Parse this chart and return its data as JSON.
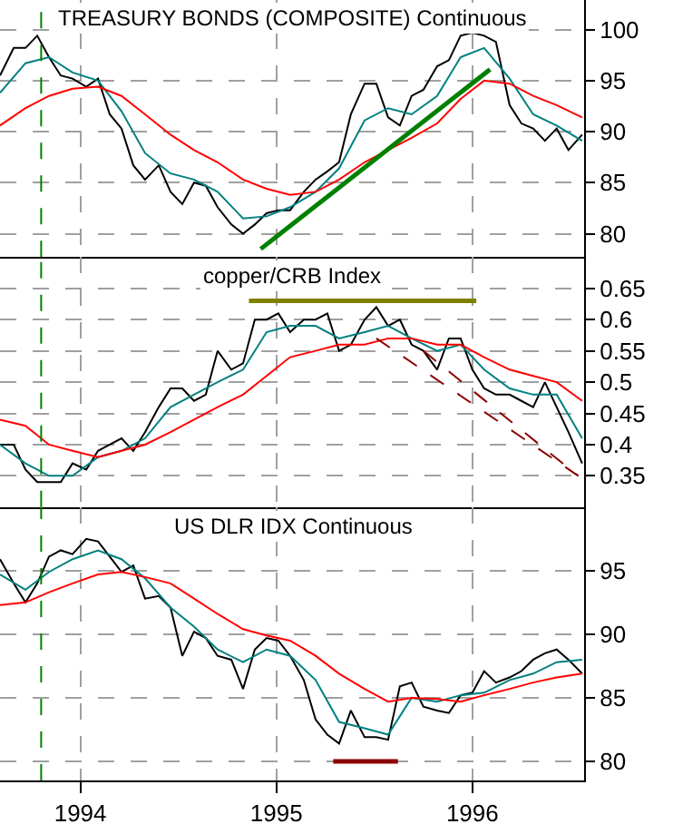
{
  "chart_data": [
    {
      "type": "line",
      "title": "TREASURY BONDS (COMPOSITE) Continuous",
      "x": [
        1993.59,
        1993.66,
        1993.72,
        1993.78,
        1993.84,
        1993.9,
        1993.96,
        1994.03,
        1994.09,
        1994.15,
        1994.21,
        1994.27,
        1994.33,
        1994.4,
        1994.46,
        1994.52,
        1994.58,
        1994.64,
        1994.7,
        1994.77,
        1994.83,
        1994.89,
        1994.95,
        1995.01,
        1995.07,
        1995.14,
        1995.2,
        1995.26,
        1995.32,
        1995.38,
        1995.45,
        1995.51,
        1995.57,
        1995.63,
        1995.69,
        1995.75,
        1995.82,
        1995.88,
        1995.94,
        1996.0,
        1996.06,
        1996.12,
        1996.19,
        1996.25,
        1996.31,
        1996.37,
        1996.43,
        1996.49,
        1996.56
      ],
      "series": [
        {
          "color": "#000000",
          "values": [
            95.5,
            98.2,
            98.2,
            99.4,
            97.3,
            95.5,
            95.2,
            94.4,
            95.2,
            91.7,
            90.3,
            86.7,
            85.3,
            86.7,
            84.1,
            82.9,
            85.0,
            84.7,
            82.6,
            80.9,
            80.0,
            80.9,
            82.0,
            82.3,
            82.3,
            84.1,
            85.3,
            86.1,
            87.0,
            91.7,
            94.7,
            94.7,
            91.4,
            90.6,
            93.5,
            94.1,
            96.4,
            97.0,
            99.4,
            99.7,
            99.4,
            98.8,
            92.6,
            90.8,
            90.3,
            89.1,
            90.3,
            88.2,
            89.7
          ]
        },
        {
          "color": "#008080",
          "x": [
            1993.59,
            1993.72,
            1993.84,
            1993.96,
            1994.09,
            1994.21,
            1994.33,
            1994.46,
            1994.58,
            1994.7,
            1994.83,
            1994.95,
            1995.07,
            1995.2,
            1995.32,
            1995.45,
            1995.57,
            1995.69,
            1995.82,
            1995.94,
            1996.06,
            1996.19,
            1996.31,
            1996.43,
            1996.56
          ],
          "values": [
            93.8,
            96.7,
            97.3,
            95.8,
            95.0,
            92.0,
            87.9,
            85.9,
            85.3,
            84.1,
            81.5,
            81.7,
            82.6,
            84.1,
            86.4,
            91.1,
            92.3,
            91.7,
            93.5,
            97.3,
            98.2,
            95.2,
            91.7,
            90.6,
            89.1
          ]
        },
        {
          "color": "#ff0000",
          "x": [
            1993.59,
            1993.72,
            1993.84,
            1993.96,
            1994.09,
            1994.21,
            1994.33,
            1994.46,
            1994.58,
            1994.7,
            1994.83,
            1994.95,
            1995.07,
            1995.2,
            1995.32,
            1995.45,
            1995.57,
            1995.69,
            1995.82,
            1995.94,
            1996.06,
            1996.19,
            1996.31,
            1996.43,
            1996.56
          ],
          "values": [
            90.6,
            92.3,
            93.5,
            94.2,
            94.4,
            93.5,
            91.7,
            89.7,
            88.2,
            87.0,
            85.3,
            84.4,
            83.8,
            84.1,
            85.3,
            87.0,
            88.2,
            89.4,
            90.8,
            93.2,
            95.0,
            94.7,
            93.5,
            92.6,
            91.4
          ]
        },
        {
          "color": "#008000",
          "x": [
            1994.92,
            1996.09
          ],
          "values": [
            78.5,
            96.1
          ]
        }
      ],
      "xlim": [
        1993.59,
        1996.57
      ],
      "ylim": [
        77.7,
        102.9
      ],
      "yticks": [
        80,
        85,
        90,
        95,
        100
      ],
      "grid": true,
      "tick_labels": "y",
      "ref_lines": [
        {
          "axis": "x",
          "value": 1993.8,
          "color": "#008000",
          "line_style": "dashed"
        }
      ]
    },
    {
      "type": "line",
      "title": "copper/CRB Index",
      "x": [
        1993.59,
        1993.66,
        1993.72,
        1993.78,
        1993.84,
        1993.9,
        1993.96,
        1994.03,
        1994.09,
        1994.15,
        1994.21,
        1994.27,
        1994.33,
        1994.4,
        1994.46,
        1994.52,
        1994.58,
        1994.64,
        1994.7,
        1994.77,
        1994.83,
        1994.89,
        1994.95,
        1995.01,
        1995.07,
        1995.14,
        1995.2,
        1995.26,
        1995.32,
        1995.38,
        1995.45,
        1995.51,
        1995.57,
        1995.63,
        1995.69,
        1995.75,
        1995.82,
        1995.88,
        1995.94,
        1996.0,
        1996.06,
        1996.12,
        1996.19,
        1996.25,
        1996.31,
        1996.37,
        1996.43,
        1996.49,
        1996.56
      ],
      "series": [
        {
          "color": "#000000",
          "values": [
            0.4,
            0.4,
            0.36,
            0.34,
            0.34,
            0.34,
            0.37,
            0.36,
            0.39,
            0.4,
            0.41,
            0.39,
            0.42,
            0.46,
            0.49,
            0.49,
            0.47,
            0.48,
            0.55,
            0.52,
            0.53,
            0.6,
            0.6,
            0.61,
            0.58,
            0.6,
            0.6,
            0.61,
            0.55,
            0.56,
            0.6,
            0.62,
            0.59,
            0.6,
            0.56,
            0.55,
            0.52,
            0.57,
            0.57,
            0.52,
            0.49,
            0.48,
            0.48,
            0.47,
            0.46,
            0.5,
            0.46,
            0.42,
            0.37
          ]
        },
        {
          "color": "#008080",
          "x": [
            1993.59,
            1993.72,
            1993.84,
            1993.96,
            1994.09,
            1994.21,
            1994.33,
            1994.46,
            1994.58,
            1994.7,
            1994.83,
            1994.95,
            1995.07,
            1995.2,
            1995.32,
            1995.45,
            1995.57,
            1995.69,
            1995.82,
            1995.94,
            1996.06,
            1996.19,
            1996.31,
            1996.43,
            1996.56
          ],
          "values": [
            0.4,
            0.37,
            0.35,
            0.35,
            0.38,
            0.39,
            0.41,
            0.46,
            0.48,
            0.5,
            0.52,
            0.58,
            0.59,
            0.59,
            0.57,
            0.58,
            0.59,
            0.57,
            0.55,
            0.56,
            0.52,
            0.49,
            0.48,
            0.48,
            0.41
          ]
        },
        {
          "color": "#ff0000",
          "x": [
            1993.59,
            1993.72,
            1993.84,
            1993.96,
            1994.09,
            1994.21,
            1994.33,
            1994.46,
            1994.58,
            1994.7,
            1994.83,
            1994.95,
            1995.07,
            1995.2,
            1995.32,
            1995.45,
            1995.57,
            1995.69,
            1995.82,
            1995.94,
            1996.06,
            1996.19,
            1996.31,
            1996.43,
            1996.56
          ],
          "values": [
            0.44,
            0.43,
            0.4,
            0.39,
            0.38,
            0.39,
            0.4,
            0.42,
            0.44,
            0.46,
            0.48,
            0.51,
            0.54,
            0.55,
            0.56,
            0.56,
            0.57,
            0.57,
            0.56,
            0.56,
            0.54,
            0.52,
            0.51,
            0.5,
            0.47
          ]
        },
        {
          "color": "#808000",
          "x": [
            1994.86,
            1996.02
          ],
          "values": [
            0.63,
            0.63
          ]
        },
        {
          "color": "#8b0000",
          "line_style": "dashed",
          "x": [
            1995.51,
            1996.54
          ],
          "values": [
            0.57,
            0.35
          ]
        },
        {
          "color": "#8b0000",
          "line_style": "dashed",
          "x": [
            1995.75,
            1996.54
          ],
          "values": [
            0.55,
            0.35
          ]
        }
      ],
      "xlim": [
        1993.59,
        1996.57
      ],
      "ylim": [
        0.3,
        0.7
      ],
      "yticks": [
        0.35,
        0.4,
        0.45,
        0.5,
        0.55,
        0.6,
        0.65
      ],
      "grid": true,
      "tick_labels": "y",
      "ref_lines": [
        {
          "axis": "x",
          "value": 1993.8,
          "color": "#008000",
          "line_style": "dashed"
        }
      ]
    },
    {
      "type": "line",
      "title": "US DLR IDX Continuous",
      "x": [
        1993.59,
        1993.66,
        1993.72,
        1993.78,
        1993.84,
        1993.9,
        1993.96,
        1994.03,
        1994.09,
        1994.15,
        1994.21,
        1994.27,
        1994.33,
        1994.4,
        1994.46,
        1994.52,
        1994.58,
        1994.64,
        1994.7,
        1994.77,
        1994.83,
        1994.89,
        1994.95,
        1995.01,
        1995.07,
        1995.14,
        1995.2,
        1995.26,
        1995.32,
        1995.38,
        1995.45,
        1995.51,
        1995.57,
        1995.63,
        1995.69,
        1995.75,
        1995.82,
        1995.88,
        1995.94,
        1996.0,
        1996.06,
        1996.12,
        1996.19,
        1996.25,
        1996.31,
        1996.37,
        1996.43,
        1996.49,
        1996.56
      ],
      "series": [
        {
          "color": "#000000",
          "values": [
            95.9,
            94.0,
            92.5,
            94.0,
            96.1,
            96.6,
            96.3,
            97.5,
            97.3,
            96.1,
            94.9,
            95.4,
            92.8,
            93.0,
            92.1,
            88.3,
            90.2,
            89.7,
            88.3,
            88.0,
            85.7,
            88.8,
            89.7,
            89.5,
            88.3,
            86.4,
            83.3,
            82.1,
            81.4,
            84.0,
            81.9,
            81.9,
            81.7,
            85.9,
            86.2,
            84.3,
            84.0,
            83.8,
            85.2,
            85.4,
            87.1,
            86.2,
            86.6,
            87.1,
            88.0,
            88.5,
            88.8,
            88.0,
            86.9
          ]
        },
        {
          "color": "#008080",
          "x": [
            1993.59,
            1993.72,
            1993.84,
            1993.96,
            1994.09,
            1994.21,
            1994.33,
            1994.46,
            1994.58,
            1994.7,
            1994.83,
            1994.95,
            1995.07,
            1995.2,
            1995.32,
            1995.45,
            1995.57,
            1995.69,
            1995.82,
            1995.94,
            1996.06,
            1996.19,
            1996.31,
            1996.43,
            1996.56
          ],
          "values": [
            94.7,
            93.5,
            94.9,
            95.9,
            96.6,
            95.9,
            94.4,
            92.1,
            90.6,
            88.8,
            87.8,
            88.8,
            88.3,
            86.4,
            83.1,
            82.6,
            82.1,
            85.0,
            84.7,
            85.2,
            85.4,
            86.4,
            86.9,
            87.8,
            88.0
          ]
        },
        {
          "color": "#ff0000",
          "x": [
            1993.59,
            1993.72,
            1993.84,
            1993.96,
            1994.09,
            1994.21,
            1994.33,
            1994.46,
            1994.58,
            1994.7,
            1994.83,
            1994.95,
            1995.07,
            1995.2,
            1995.32,
            1995.45,
            1995.57,
            1995.69,
            1995.82,
            1995.94,
            1996.06,
            1996.19,
            1996.31,
            1996.43,
            1996.56
          ],
          "values": [
            92.3,
            92.5,
            93.3,
            94.0,
            94.7,
            94.9,
            94.5,
            94.0,
            92.8,
            91.6,
            90.4,
            89.9,
            89.5,
            88.3,
            86.9,
            85.7,
            84.7,
            85.0,
            84.9,
            84.7,
            85.2,
            85.7,
            86.2,
            86.6,
            86.9
          ]
        },
        {
          "color": "#8b0000",
          "x": [
            1995.29,
            1995.62
          ],
          "values": [
            80.0,
            80.0
          ]
        }
      ],
      "xlim": [
        1993.59,
        1996.57
      ],
      "ylim": [
        78.5,
        100
      ],
      "yticks": [
        80,
        85,
        90,
        95
      ],
      "xticks": [
        1994,
        1995,
        1996
      ],
      "grid": true,
      "ref_lines": [
        {
          "axis": "x",
          "value": 1993.8,
          "color": "#008000",
          "line_style": "dashed"
        }
      ]
    }
  ]
}
